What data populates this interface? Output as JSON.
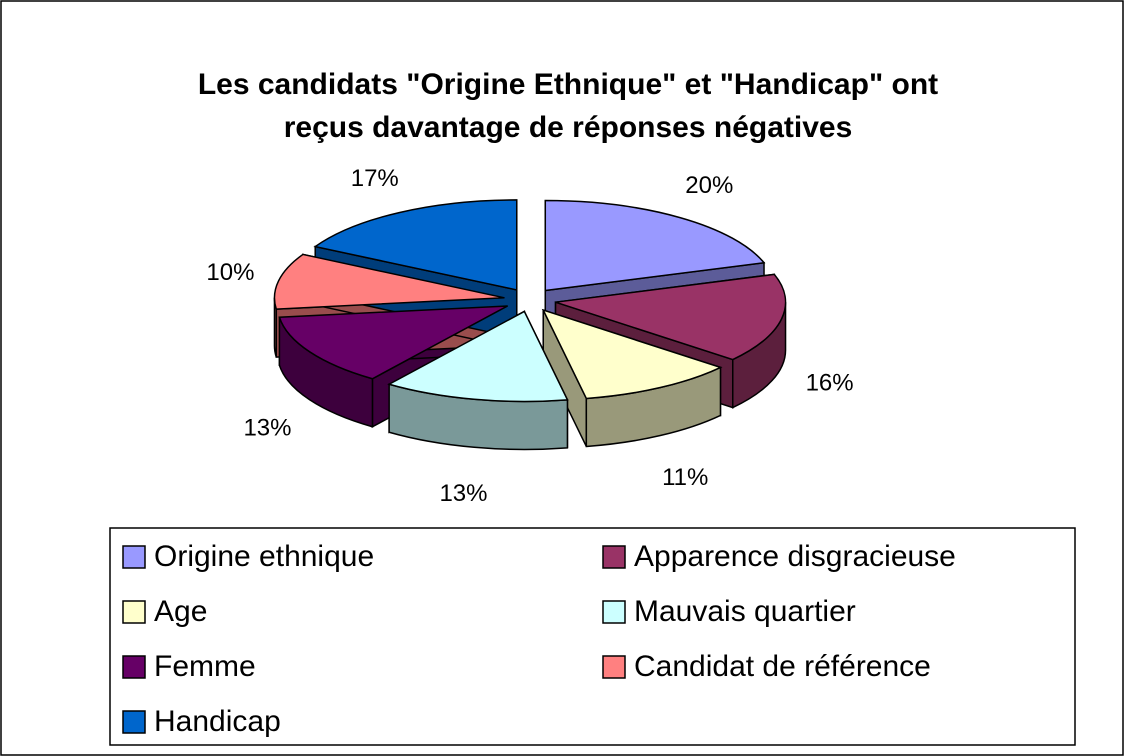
{
  "chart_data": {
    "type": "pie",
    "title": [
      "Les candidats \"Origine Ethnique\" et \"Handicap\" ont",
      "reçus davantage de réponses négatives"
    ],
    "categories": [
      "Origine ethnique",
      "Apparence disgracieuse",
      "Age",
      "Mauvais quartier",
      "Femme",
      "Candidat de référence",
      "Handicap"
    ],
    "values": [
      20,
      16,
      11,
      13,
      13,
      10,
      17
    ],
    "value_labels": [
      "20%",
      "16%",
      "11%",
      "13%",
      "13%",
      "10%",
      "17%"
    ],
    "colors": [
      "#9999ff",
      "#993366",
      "#ffffcc",
      "#ccffff",
      "#660066",
      "#ff8080",
      "#0066cc"
    ],
    "legend": "bottom"
  }
}
